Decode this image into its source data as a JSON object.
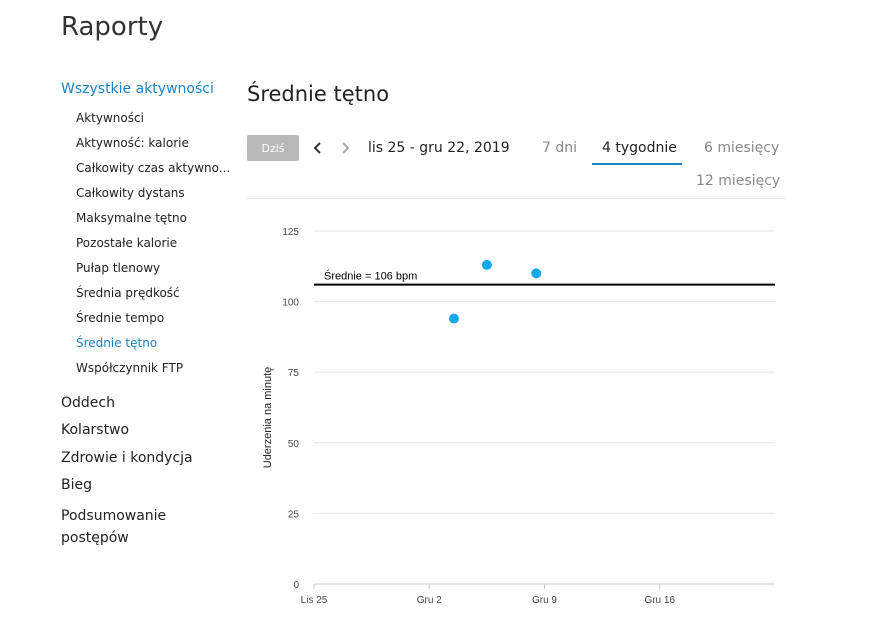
{
  "header": {
    "title": "Raporty"
  },
  "sidebar": {
    "all_activities": "Wszystkie aktywności",
    "items": [
      {
        "label": "Aktywności"
      },
      {
        "label": "Aktywność: kalorie"
      },
      {
        "label": "Całkowity czas aktywno..."
      },
      {
        "label": "Całkowity dystans"
      },
      {
        "label": "Maksymalne tętno"
      },
      {
        "label": "Pozostałe kalorie"
      },
      {
        "label": "Pułap tlenowy"
      },
      {
        "label": "Średnia prędkość"
      },
      {
        "label": "Średnie tempo"
      },
      {
        "label": "Średnie tętno"
      },
      {
        "label": "Współczynnik FTP"
      }
    ],
    "groups": [
      {
        "label": "Oddech"
      },
      {
        "label": "Kolarstwo"
      },
      {
        "label": "Zdrowie i kondycja"
      },
      {
        "label": "Bieg"
      },
      {
        "label": "Podsumowanie postępów"
      }
    ]
  },
  "main": {
    "title": "Średnie tętno",
    "today_label": "Dziś",
    "date_range": "lis 25 - gru 22, 2019",
    "tabs": [
      {
        "label": "7 dni"
      },
      {
        "label": "4 tygodnie"
      },
      {
        "label": "6 miesięcy"
      },
      {
        "label": "12 miesięcy"
      }
    ]
  },
  "colors": {
    "accent": "#1a84c9",
    "point": "#15a9ea",
    "grid": "#e6e6e6",
    "avg_line": "#000000"
  },
  "chart_data": {
    "type": "scatter",
    "ylabel": "Uderzenia na minutę",
    "ylim": [
      0,
      125
    ],
    "yticks": [
      0,
      25,
      50,
      75,
      100,
      125
    ],
    "xticks": [
      {
        "label": "Lis 25",
        "day": 0
      },
      {
        "label": "Gru 2",
        "day": 7
      },
      {
        "label": "Gru 9",
        "day": 14
      },
      {
        "label": "Gru 16",
        "day": 21
      }
    ],
    "xlim_days": [
      0,
      28
    ],
    "points": [
      {
        "day": 8.5,
        "value": 94
      },
      {
        "day": 10.5,
        "value": 113
      },
      {
        "day": 13.5,
        "value": 110
      }
    ],
    "average": {
      "label": "Średnie = 106 bpm",
      "value": 106
    },
    "grid": true
  }
}
